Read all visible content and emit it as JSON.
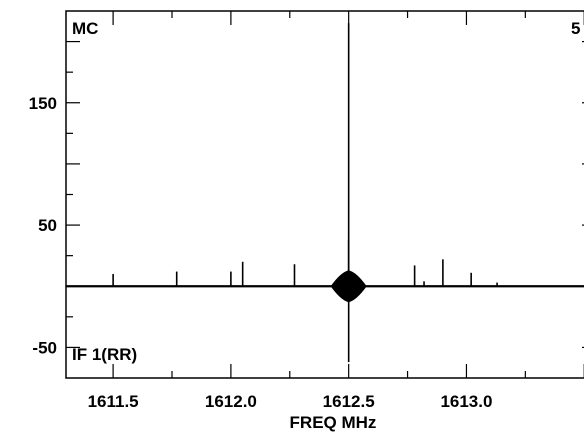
{
  "chart_data": {
    "type": "line",
    "corner_label_left": "MC",
    "corner_label_right": "5",
    "bottom_label": "IF 1(RR)",
    "xlabel": "FREQ MHz",
    "ylabel": "",
    "xlim": [
      1611.3,
      1613.55
    ],
    "ylim": [
      -75,
      225
    ],
    "xticks": [
      "1611.5",
      "1612.0",
      "1612.5",
      "1613.0"
    ],
    "xtick_values": [
      1611.5,
      1612.0,
      1612.5,
      1613.0
    ],
    "yticks": [
      "150",
      "50",
      "-50"
    ],
    "ytick_values": [
      150,
      50,
      -50
    ],
    "baseline": 0,
    "series": [
      {
        "values_description_none": true,
        "x": [
          1611.5,
          1611.77,
          1612.0,
          1612.05,
          1612.27,
          1612.5,
          1612.5,
          1612.5,
          1612.78,
          1612.82,
          1612.9,
          1613.02,
          1613.13
        ],
        "y": [
          10,
          12,
          12,
          20,
          18,
          215,
          38,
          -62,
          17,
          4,
          22,
          11,
          3
        ]
      }
    ],
    "grid": false
  }
}
